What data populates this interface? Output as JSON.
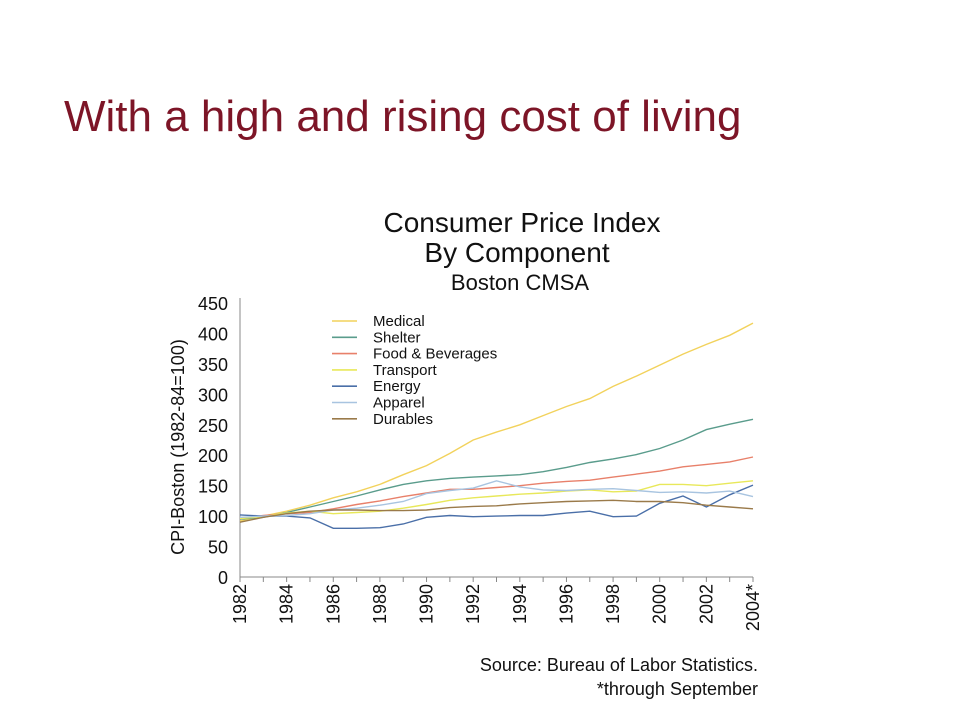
{
  "slide": {
    "title": "With a high and rising cost of living"
  },
  "chart_data": {
    "type": "line",
    "title": "Consumer Price Index",
    "subtitle": "By Component",
    "region": "Boston CMSA",
    "ylabel": "CPI-Boston (1982-84=100)",
    "ylim": [
      0,
      450
    ],
    "yticks": [
      "0",
      "50",
      "100",
      "150",
      "200",
      "250",
      "300",
      "350",
      "400",
      "450"
    ],
    "xlim": [
      1982,
      2004
    ],
    "xticks": [
      "1982",
      "1984",
      "1986",
      "1988",
      "1990",
      "1992",
      "1994",
      "1996",
      "1998",
      "2000",
      "2002",
      "2004*"
    ],
    "grid": false,
    "legend": "top-left",
    "source": "Source: Bureau of Labor Statistics.",
    "footnote": "*through September",
    "x": [
      1982,
      1983,
      1984,
      1985,
      1986,
      1987,
      1988,
      1989,
      1990,
      1991,
      1992,
      1993,
      1994,
      1995,
      1996,
      1997,
      1998,
      1999,
      2000,
      2001,
      2002,
      2003,
      2004
    ],
    "series": [
      {
        "name": "Medical",
        "color": "#f2d25c",
        "values": [
          92,
          100,
          108,
          118,
          130,
          140,
          152,
          168,
          183,
          203,
          225,
          238,
          250,
          265,
          280,
          293,
          313,
          330,
          348,
          366,
          382,
          397,
          417
        ]
      },
      {
        "name": "Shelter",
        "color": "#5a9c8c",
        "values": [
          95,
          98,
          106,
          115,
          124,
          133,
          143,
          152,
          158,
          162,
          164,
          166,
          168,
          173,
          180,
          188,
          194,
          201,
          211,
          225,
          242,
          251,
          259
        ]
      },
      {
        "name": "Food & Beverages",
        "color": "#e8806a",
        "values": [
          96,
          101,
          104,
          106,
          112,
          119,
          125,
          132,
          138,
          144,
          144,
          147,
          150,
          154,
          157,
          159,
          164,
          169,
          174,
          181,
          185,
          189,
          197
        ]
      },
      {
        "name": "Transport",
        "color": "#e8e85a",
        "values": [
          96,
          99,
          105,
          108,
          104,
          106,
          108,
          113,
          119,
          126,
          130,
          133,
          136,
          138,
          141,
          143,
          140,
          141,
          152,
          152,
          150,
          154,
          158
        ]
      },
      {
        "name": "Energy",
        "color": "#4a6fa8",
        "values": [
          102,
          100,
          100,
          97,
          80,
          80,
          81,
          87,
          98,
          101,
          99,
          100,
          101,
          101,
          105,
          108,
          99,
          100,
          121,
          133,
          115,
          135,
          151
        ]
      },
      {
        "name": "Apparel",
        "color": "#a8c4e0",
        "values": [
          98,
          100,
          101,
          104,
          110,
          113,
          118,
          124,
          137,
          142,
          146,
          158,
          148,
          143,
          142,
          144,
          145,
          142,
          139,
          140,
          138,
          141,
          132
        ]
      },
      {
        "name": "Durables",
        "color": "#9a7a4a",
        "values": [
          90,
          98,
          104,
          108,
          110,
          110,
          109,
          109,
          110,
          114,
          116,
          117,
          120,
          122,
          124,
          125,
          126,
          124,
          124,
          122,
          118,
          115,
          112
        ]
      }
    ]
  }
}
